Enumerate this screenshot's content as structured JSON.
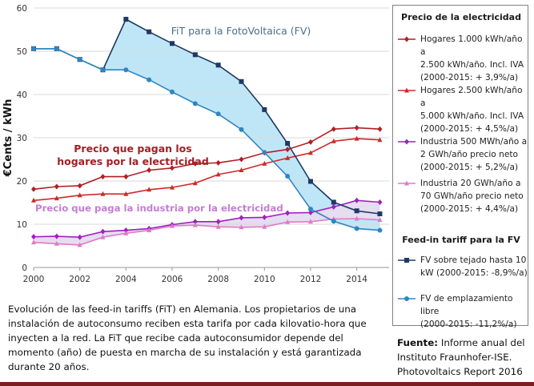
{
  "chart_data": {
    "type": "line",
    "x": [
      2000,
      2001,
      2002,
      2003,
      2004,
      2005,
      2006,
      2007,
      2008,
      2009,
      2010,
      2011,
      2012,
      2013,
      2014,
      2015
    ],
    "xlim": [
      2000,
      2015.4
    ],
    "ylim": [
      0,
      60
    ],
    "xticks": [
      "2000",
      "2002",
      "2004",
      "2006",
      "2008",
      "2010",
      "2012",
      "2014"
    ],
    "yticks": [
      "0",
      "10",
      "20",
      "30",
      "40",
      "50",
      "60"
    ],
    "ylabel": "€Cents / kWh",
    "xlabel": "",
    "title": "",
    "grid": "horizontal",
    "legend_position": "right",
    "series": [
      {
        "id": "hog1",
        "name": "Hogares 1.000 kWh/año a 2.500 kWh/año. Incl. IVA (2000-2015: + 3,9%/a)",
        "color": "#b01f24",
        "marker": "diamond",
        "values": [
          18.1,
          18.7,
          18.9,
          21.0,
          21.0,
          22.5,
          23.0,
          24.0,
          24.2,
          25.0,
          26.5,
          27.3,
          29.0,
          32.0,
          32.3,
          32.0
        ]
      },
      {
        "id": "hog2",
        "name": "Hogares 2.500 kWh/año a 5.000 kWh/año. Incl. IVA (2000-2015: + 4,5%/a)",
        "color": "#cf2a2a",
        "marker": "triangle",
        "values": [
          15.5,
          16.0,
          16.7,
          17.0,
          17.0,
          18.0,
          18.5,
          19.5,
          21.5,
          22.5,
          24.0,
          25.3,
          26.5,
          29.2,
          29.8,
          29.5
        ]
      },
      {
        "id": "ind1",
        "name": "Industria 500 MWh/año a 2 GWh/año precio neto (2000-2015: + 5,2%/a)",
        "color": "#a020c0",
        "marker": "diamond",
        "values": [
          7.1,
          7.2,
          7.0,
          8.3,
          8.6,
          9.0,
          9.9,
          10.6,
          10.6,
          11.5,
          11.6,
          12.6,
          12.7,
          14.0,
          15.5,
          15.1
        ]
      },
      {
        "id": "ind2",
        "name": "Industria 20 GWh/año a 70 GWh/año precio neto (2000-2015: + 4,4%/a)",
        "color": "#e07ac8",
        "marker": "triangle",
        "values": [
          5.8,
          5.5,
          5.2,
          7.0,
          7.9,
          8.6,
          9.6,
          9.8,
          9.4,
          9.3,
          9.4,
          10.5,
          10.6,
          11.2,
          11.3,
          11.0
        ]
      },
      {
        "id": "fv1",
        "name": "FV sobre tejado hasta 10 kW (2000-2015: -8,9%/a)",
        "color": "#1f3864",
        "marker": "square",
        "values": [
          50.6,
          50.6,
          48.1,
          45.7,
          57.4,
          54.5,
          51.8,
          49.2,
          46.8,
          43.0,
          36.5,
          28.7,
          19.9,
          15.1,
          13.1,
          12.4
        ]
      },
      {
        "id": "fv2",
        "name": "FV de emplazamiento libre (2000-2015: -11,2%/a)",
        "color": "#2e86c1",
        "marker": "circle",
        "values": [
          50.6,
          50.6,
          48.1,
          45.7,
          45.7,
          43.4,
          40.6,
          37.9,
          35.5,
          31.9,
          26.6,
          21.1,
          13.5,
          10.7,
          9.0,
          8.6
        ]
      }
    ],
    "annotations": {
      "fit": "FiT para la FotoVoltaica (FV)",
      "households_line1": "Precio que pagan los",
      "households_line2": "hogares por la electricidad",
      "industry": "Precio que paga la industria por la electricidad"
    }
  },
  "legend": {
    "price_heading": "Precio de la electricidad",
    "fit_heading": "Feed-in tariff para la FV",
    "entries": [
      {
        "series": "hog1",
        "lines": [
          "Hogares 1.000 kWh/año a",
          "2.500 kWh/año. Incl. IVA",
          "(2000-2015: + 3,9%/a)"
        ]
      },
      {
        "series": "hog2",
        "lines": [
          "Hogares 2.500 kWh/año a",
          "5.000 kWh/año. Incl. IVA",
          "(2000-2015: + 4,5%/a)"
        ]
      },
      {
        "series": "ind1",
        "lines": [
          "Industria 500 MWh/año a",
          "2 GWh/año precio neto",
          "(2000-2015: + 5,2%/a)"
        ]
      },
      {
        "series": "ind2",
        "lines": [
          "Industria 20 GWh/año a",
          "70 GWh/año precio neto",
          "(2000-2015: + 4,4%/a)"
        ]
      },
      {
        "series": "fv1",
        "lines": [
          "FV sobre tejado hasta 10",
          "kW (2000-2015: -8,9%/a)"
        ]
      },
      {
        "series": "fv2",
        "lines": [
          "FV de emplazamiento libre",
          "(2000-2015: -11,2%/a)"
        ]
      }
    ]
  },
  "caption": {
    "lines": [
      "Evolución de las feed-in tariffs (FiT) en Alemania. Los propietarios de una",
      "instalación de autoconsumo reciben esta tarifa por cada kilovatio-hora que",
      "inyecten a la red. La FiT que recibe cada autoconsumidor depende del",
      "momento (año) de puesta en marcha de su instalación y está garantizada",
      "durante 20 años."
    ]
  },
  "source": {
    "label": "Fuente:",
    "text_line1": "Informe anual del",
    "line2": "Instituto Fraunhofer-ISE.",
    "line3": "Photovoltaics Report 2016"
  }
}
